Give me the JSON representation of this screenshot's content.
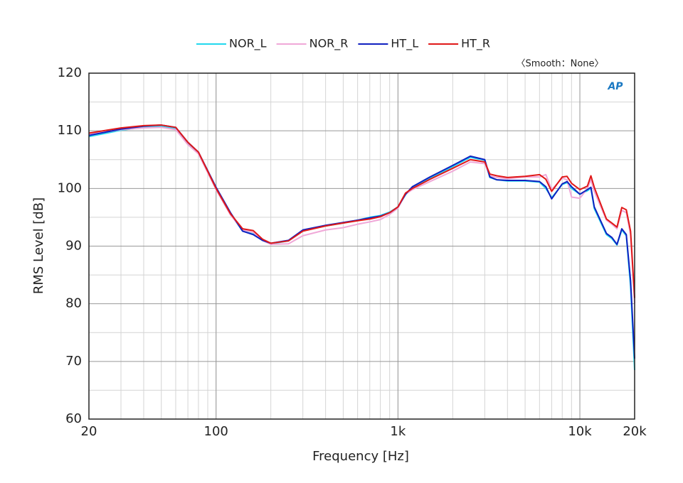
{
  "chart_data": {
    "type": "line",
    "x_scale": "log",
    "grid": true,
    "minor_grid": true,
    "annotation": "〈Smooth：None〉",
    "logo": "AP",
    "xlabel": "Frequency [Hz]",
    "ylabel": "RMS Level [dB]",
    "xlim": [
      20,
      20000
    ],
    "ylim": [
      60,
      120
    ],
    "xticks": [
      20,
      100,
      {
        "value": 1000,
        "label": "1k"
      },
      {
        "value": 10000,
        "label": "10k"
      },
      {
        "value": 20000,
        "label": "20k"
      }
    ],
    "yticks": [
      60,
      70,
      80,
      90,
      100,
      110,
      120
    ],
    "x": [
      20,
      25,
      30,
      40,
      50,
      60,
      70,
      80,
      100,
      120,
      140,
      160,
      180,
      200,
      250,
      300,
      400,
      500,
      600,
      700,
      800,
      900,
      1000,
      1100,
      1200,
      1500,
      2000,
      2500,
      3000,
      3200,
      3500,
      4000,
      5000,
      6000,
      6500,
      7000,
      8000,
      8500,
      9000,
      10000,
      11000,
      11500,
      12000,
      14000,
      15000,
      16000,
      17000,
      18000,
      19000,
      20000
    ],
    "series": [
      {
        "name": "NOR_L",
        "color": "#22d8ee",
        "values": [
          109.0,
          109.6,
          110.1,
          110.6,
          110.8,
          110.4,
          107.8,
          106.1,
          100.0,
          95.6,
          92.6,
          92.1,
          91.0,
          90.4,
          90.9,
          92.7,
          93.5,
          94.0,
          94.5,
          95.0,
          95.3,
          95.9,
          96.8,
          98.9,
          100.2,
          101.8,
          103.8,
          105.4,
          104.9,
          101.9,
          101.5,
          101.3,
          101.3,
          101.1,
          100.0,
          98.4,
          100.7,
          101.0,
          100.0,
          99.0,
          99.6,
          100.0,
          96.5,
          92.0,
          91.3,
          90.2,
          92.8,
          91.8,
          83.0,
          68.5
        ]
      },
      {
        "name": "NOR_R",
        "color": "#f0a8d8",
        "values": [
          109.4,
          109.8,
          110.2,
          110.5,
          110.6,
          110.2,
          107.6,
          106.0,
          99.8,
          95.4,
          92.8,
          92.4,
          91.0,
          90.3,
          90.4,
          91.8,
          92.8,
          93.2,
          93.8,
          94.2,
          94.6,
          95.5,
          96.6,
          99.0,
          99.8,
          101.2,
          103.0,
          104.6,
          104.3,
          102.2,
          101.9,
          101.7,
          102.0,
          102.0,
          102.4,
          99.8,
          101.8,
          101.5,
          98.5,
          98.3,
          100.0,
          101.5,
          99.5,
          94.5,
          93.8,
          93.0,
          96.2,
          95.8,
          92.0,
          80.0
        ]
      },
      {
        "name": "HT_L",
        "color": "#1020c0",
        "values": [
          109.2,
          109.8,
          110.3,
          110.8,
          111.0,
          110.6,
          108.0,
          106.3,
          100.2,
          95.8,
          92.6,
          92.0,
          91.0,
          90.5,
          91.0,
          92.8,
          93.6,
          94.1,
          94.5,
          94.9,
          95.2,
          95.8,
          96.8,
          99.0,
          100.3,
          102.0,
          104.0,
          105.6,
          105.0,
          102.0,
          101.5,
          101.4,
          101.4,
          101.2,
          100.3,
          98.2,
          100.8,
          101.2,
          100.3,
          99.0,
          99.8,
          100.2,
          96.8,
          92.2,
          91.5,
          90.3,
          93.0,
          92.0,
          84.0,
          70.5
        ]
      },
      {
        "name": "HT_R",
        "color": "#e01818",
        "values": [
          109.6,
          110.1,
          110.5,
          110.9,
          111.0,
          110.6,
          108.0,
          106.3,
          100.0,
          95.6,
          93.0,
          92.7,
          91.2,
          90.5,
          90.9,
          92.6,
          93.5,
          94.0,
          94.4,
          94.7,
          95.1,
          95.8,
          96.8,
          99.2,
          100.0,
          101.6,
          103.5,
          105.0,
          104.6,
          102.5,
          102.2,
          101.9,
          102.1,
          102.4,
          101.6,
          99.5,
          102.0,
          102.1,
          100.9,
          99.8,
          100.4,
          102.2,
          100.2,
          94.7,
          94.0,
          93.3,
          96.7,
          96.3,
          92.6,
          81.0
        ]
      }
    ]
  }
}
